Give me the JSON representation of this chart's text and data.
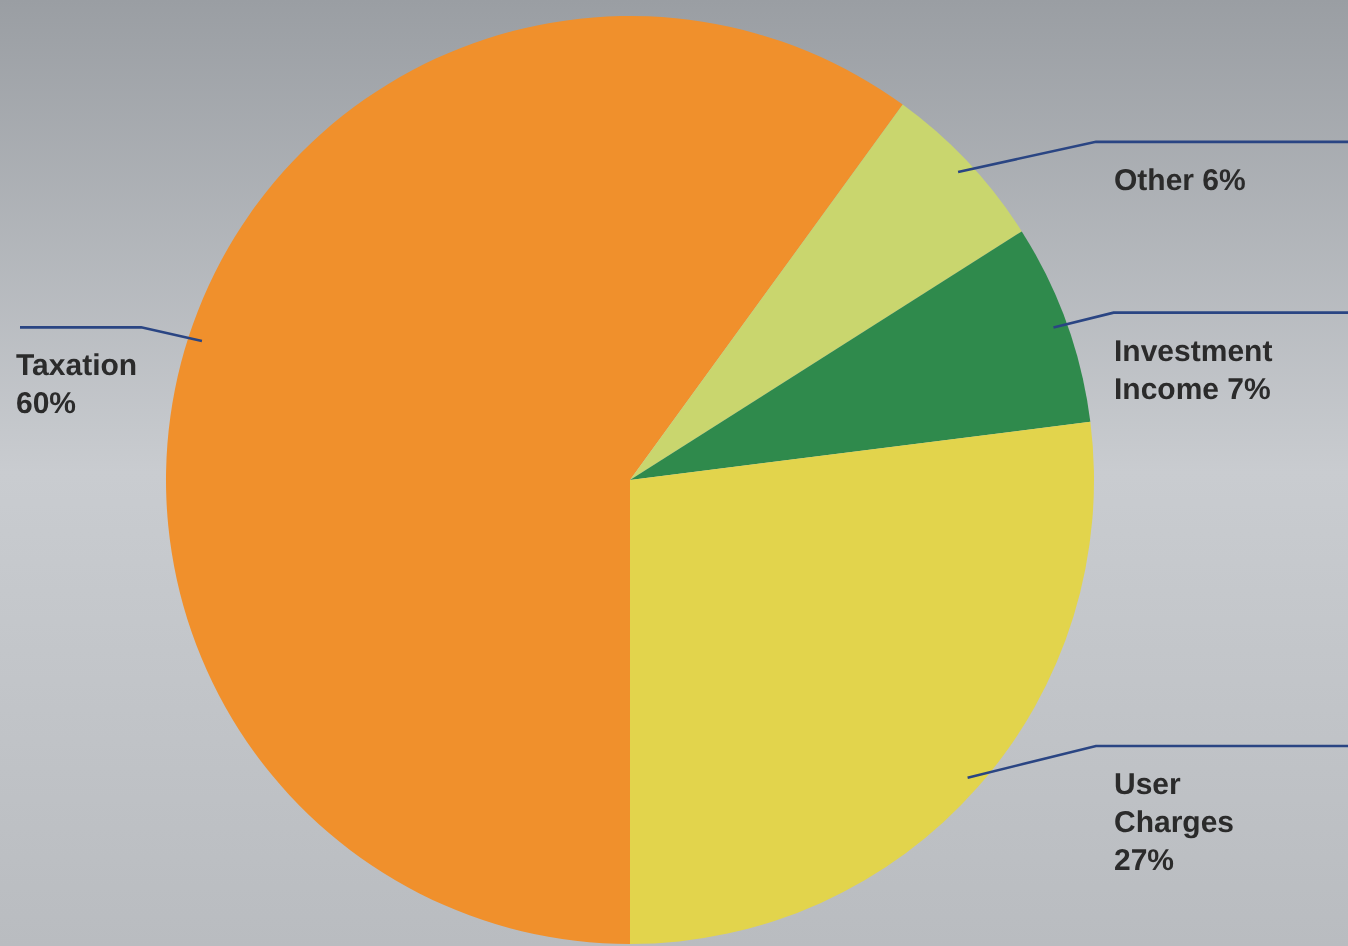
{
  "chart_data": {
    "type": "pie",
    "categories": [
      "Taxation",
      "Other",
      "Investment Income",
      "User Charges"
    ],
    "values": [
      60,
      6,
      7,
      27
    ],
    "value_labels": [
      "60%",
      "6%",
      "7%",
      "27%"
    ],
    "colors": [
      "#f0902c",
      "#c9d66e",
      "#2f8a4c",
      "#e2d44c"
    ]
  }
}
